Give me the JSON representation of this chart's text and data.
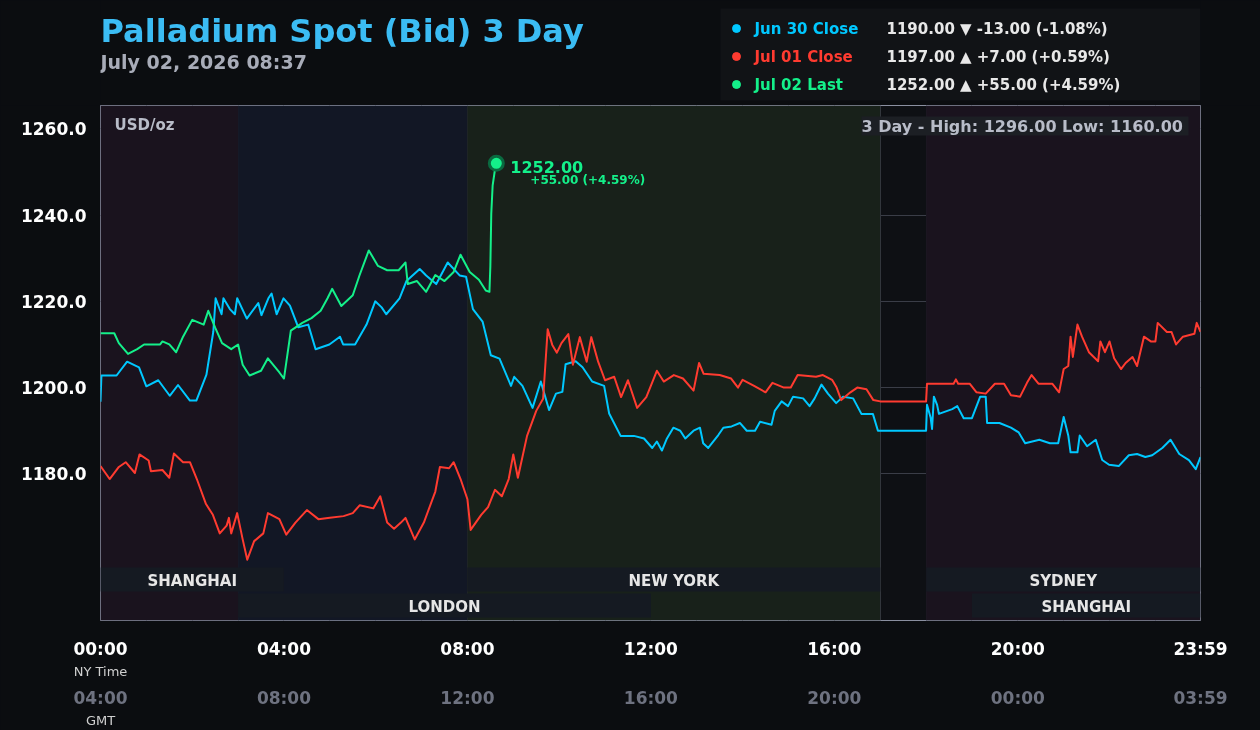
{
  "chart_data": {
    "type": "line",
    "title": "Palladium Spot (Bid) 3 Day",
    "subtitle": "July 02, 2026 08:37",
    "ylabel": "USD/oz",
    "xlabel": "NY Time",
    "x2label": "GMT",
    "xlim": [
      0,
      23.983
    ],
    "ylim": [
      1146,
      1265.4
    ],
    "xticks": [
      {
        "value": 0,
        "label": "00:00"
      },
      {
        "value": 4,
        "label": "04:00"
      },
      {
        "value": 8,
        "label": "08:00"
      },
      {
        "value": 12,
        "label": "12:00"
      },
      {
        "value": 16,
        "label": "16:00"
      },
      {
        "value": 20,
        "label": "20:00"
      },
      {
        "value": 23.983,
        "label": "23:59"
      }
    ],
    "x2lim": [
      "2026-07-02T04:00",
      "2026-07-03T03:59"
    ],
    "x2ticks": [
      {
        "value": "2026-07-02T04:00",
        "label": "04:00"
      },
      {
        "value": "2026-07-02T08:00",
        "label": "08:00"
      },
      {
        "value": "2026-07-02T12:00",
        "label": "12:00"
      },
      {
        "value": "2026-07-02T16:00",
        "label": "16:00"
      },
      {
        "value": "2026-07-02T20:00",
        "label": "20:00"
      },
      {
        "value": "2026-07-03T00:00",
        "label": "00:00"
      },
      {
        "value": "2026-07-03T03:59",
        "label": "03:59"
      }
    ],
    "yticks": [
      {
        "value": 1180,
        "label": "1180.0"
      },
      {
        "value": 1200,
        "label": "1200.0"
      },
      {
        "value": 1220,
        "label": "1220.0"
      },
      {
        "value": 1240,
        "label": "1240.0"
      },
      {
        "value": 1260,
        "label": "1260.0"
      }
    ],
    "grid": true,
    "legend": "top right",
    "line_style": "solid",
    "series": [
      {
        "name": "Jun 30 Close",
        "color": "#00c8ff",
        "x": [
          0,
          0.02,
          0.35,
          0.58,
          0.84,
          1.0,
          1.26,
          1.51,
          1.69,
          1.95,
          2.09,
          2.31,
          2.46,
          2.51,
          2.64,
          2.68,
          2.82,
          2.93,
          2.98,
          3.19,
          3.44,
          3.51,
          3.66,
          3.73,
          3.84,
          3.99,
          4.13,
          4.31,
          4.53,
          4.69,
          4.99,
          5.22,
          5.29,
          5.55,
          5.8,
          5.99,
          6.13,
          6.23,
          6.52,
          6.67,
          6.96,
          7.1,
          7.32,
          7.57,
          7.83,
          7.97,
          8.12,
          8.33,
          8.51,
          8.7,
          8.95,
          9.02,
          9.2,
          9.42,
          9.6,
          9.78,
          9.93,
          10.07,
          10.14,
          10.36,
          10.51,
          10.72,
          10.98,
          11.09,
          11.34,
          11.63,
          11.85,
          12.03,
          12.13,
          12.24,
          12.35,
          12.49,
          12.64,
          12.75,
          12.93,
          13.07,
          13.14,
          13.25,
          13.47,
          13.58,
          13.76,
          13.94,
          14.09,
          14.27,
          14.38,
          14.63,
          14.7,
          14.85,
          14.99,
          15.1,
          15.32,
          15.46,
          15.57,
          15.72,
          15.86,
          16.04,
          16.19,
          16.41,
          16.59,
          16.84,
          16.95,
          18.0,
          18.02,
          18.1,
          18.13,
          18.17,
          18.24,
          18.28,
          18.57,
          18.68,
          18.82,
          19.0,
          19.18,
          19.3,
          19.33,
          19.6,
          19.85,
          20.02,
          20.16,
          20.47,
          20.7,
          20.88,
          21.0,
          21.1,
          21.15,
          21.3,
          21.35,
          21.51,
          21.7,
          21.84,
          21.99,
          22.2,
          22.42,
          22.6,
          22.78,
          22.93,
          23.15,
          23.33,
          23.52,
          23.73,
          23.88,
          23.983
        ],
        "values": [
          1196.7,
          1202.8,
          1202.8,
          1206,
          1204.7,
          1200.3,
          1201.7,
          1198.1,
          1200.6,
          1197,
          1197,
          1203,
          1213,
          1220.7,
          1217,
          1220.7,
          1218.2,
          1217,
          1220.7,
          1216,
          1219.6,
          1216.8,
          1220.7,
          1221.8,
          1217,
          1220.7,
          1219,
          1214,
          1214.6,
          1208.9,
          1210,
          1211.8,
          1210,
          1210,
          1214.6,
          1220,
          1218.6,
          1217,
          1220.7,
          1224.7,
          1227.5,
          1226,
          1224,
          1229,
          1226,
          1225.7,
          1218.2,
          1215.3,
          1207.5,
          1206.7,
          1200.4,
          1202.5,
          1200.4,
          1195.3,
          1201.4,
          1194.8,
          1198.6,
          1199,
          1205.4,
          1206.1,
          1204.7,
          1201.4,
          1200.4,
          1194,
          1188.8,
          1188.8,
          1188.2,
          1186,
          1187.5,
          1185.4,
          1188.2,
          1190.7,
          1190,
          1188.2,
          1190,
          1190.7,
          1187.1,
          1186,
          1189,
          1190.7,
          1191,
          1191.8,
          1190,
          1190,
          1192.1,
          1191.4,
          1194.6,
          1196.8,
          1195.7,
          1197.9,
          1197.5,
          1195.7,
          1197.5,
          1200.7,
          1198.6,
          1196.4,
          1197.9,
          1197.5,
          1193.9,
          1193.9,
          1190,
          1190,
          1196,
          1193,
          1190.4,
          1197.9,
          1196,
          1193.9,
          1195,
          1195.7,
          1192.9,
          1192.9,
          1197.9,
          1197.9,
          1191.8,
          1191.8,
          1190.7,
          1189.6,
          1187.1,
          1187.9,
          1187.1,
          1187.1,
          1193.2,
          1188.9,
          1185,
          1185,
          1188.9,
          1186.4,
          1187.9,
          1183.2,
          1182.1,
          1181.8,
          1184.3,
          1184.6,
          1183.9,
          1184.3,
          1186,
          1187.9,
          1184.6,
          1183.2,
          1181.1,
          1183.9
        ]
      },
      {
        "name": "Jul 01 Close",
        "color": "#ff3b30",
        "x": [
          0,
          0.2,
          0.4,
          0.55,
          0.75,
          0.85,
          1.05,
          1.1,
          1.35,
          1.5,
          1.6,
          1.8,
          1.95,
          2.1,
          2.3,
          2.45,
          2.6,
          2.75,
          2.8,
          2.85,
          2.98,
          3.1,
          3.2,
          3.35,
          3.55,
          3.65,
          3.9,
          4.05,
          4.25,
          4.5,
          4.75,
          5.0,
          5.3,
          5.5,
          5.65,
          5.95,
          6.1,
          6.25,
          6.4,
          6.55,
          6.65,
          6.85,
          7.05,
          7.3,
          7.4,
          7.6,
          7.7,
          7.85,
          8.0,
          8.07,
          8.3,
          8.45,
          8.6,
          8.75,
          8.9,
          9.0,
          9.1,
          9.3,
          9.5,
          9.65,
          9.75,
          9.85,
          9.95,
          10.05,
          10.2,
          10.3,
          10.45,
          10.6,
          10.7,
          10.85,
          11.0,
          11.2,
          11.35,
          11.5,
          11.7,
          11.9,
          12.13,
          12.28,
          12.5,
          12.7,
          12.93,
          13.05,
          13.15,
          13.5,
          13.75,
          13.9,
          14.0,
          14.25,
          14.5,
          14.65,
          14.9,
          15.05,
          15.2,
          15.6,
          15.75,
          15.95,
          16.05,
          16.15,
          16.35,
          16.5,
          16.7,
          16.85,
          17.0,
          18.0,
          18.02,
          18.6,
          18.65,
          18.7,
          18.95,
          19.1,
          19.3,
          19.5,
          19.7,
          19.85,
          20.05,
          20.2,
          20.3,
          20.45,
          20.75,
          20.9,
          21.0,
          21.1,
          21.15,
          21.2,
          21.3,
          21.4,
          21.55,
          21.75,
          21.8,
          21.9,
          22.0,
          22.1,
          22.25,
          22.35,
          22.5,
          22.6,
          22.75,
          22.9,
          23.0,
          23.05,
          23.25,
          23.35,
          23.45,
          23.6,
          23.85,
          23.9,
          23.983
        ],
        "values": [
          1181.8,
          1178.8,
          1181.6,
          1182.7,
          1180.2,
          1184.5,
          1183.1,
          1180.6,
          1180.9,
          1179.1,
          1184.7,
          1182.7,
          1182.7,
          1178.8,
          1173,
          1170.5,
          1166.2,
          1168,
          1169.8,
          1166.2,
          1170.9,
          1164.8,
          1160.1,
          1164.4,
          1166.2,
          1170.9,
          1169.5,
          1165.9,
          1168.7,
          1171.6,
          1169.5,
          1169.8,
          1170.2,
          1170.9,
          1172.7,
          1172,
          1174.8,
          1168.7,
          1167.3,
          1168.7,
          1169.8,
          1164.8,
          1168.7,
          1175.9,
          1181.6,
          1181.3,
          1182.7,
          1178.8,
          1174.1,
          1167,
          1170.5,
          1172.3,
          1176.3,
          1174.8,
          1178.8,
          1184.5,
          1179.1,
          1188.8,
          1194.6,
          1197.4,
          1213.5,
          1209.9,
          1208.1,
          1210.3,
          1212.4,
          1205.3,
          1211.7,
          1206,
          1211.7,
          1206,
          1201.7,
          1202.5,
          1197.8,
          1201.7,
          1195.3,
          1197.8,
          1203.9,
          1201.4,
          1202.9,
          1202.1,
          1199.3,
          1205.7,
          1203.2,
          1202.9,
          1202.1,
          1200,
          1201.8,
          1200.4,
          1198.9,
          1201.1,
          1200,
          1200,
          1202.9,
          1202.5,
          1202.9,
          1201.8,
          1200,
          1197.1,
          1198.9,
          1200,
          1199.6,
          1197.1,
          1196.8,
          1196.8,
          1200.9,
          1200.9,
          1201.9,
          1200.9,
          1200.9,
          1198.9,
          1198.6,
          1200.9,
          1200.9,
          1198.2,
          1197.9,
          1201.1,
          1202.9,
          1200.9,
          1200.9,
          1198.9,
          1204.3,
          1205,
          1211.8,
          1207.1,
          1214.6,
          1211.8,
          1208.2,
          1206.1,
          1210.7,
          1208.2,
          1210.7,
          1206.8,
          1204.3,
          1205.7,
          1207.1,
          1205,
          1211.8,
          1210.7,
          1210.7,
          1215,
          1212.9,
          1212.9,
          1210,
          1211.8,
          1212.5,
          1215,
          1212.9
        ]
      },
      {
        "name": "Jul 02 Last",
        "color": "#14f08a",
        "x": [
          0,
          0.3,
          0.4,
          0.6,
          0.8,
          0.95,
          1.3,
          1.35,
          1.5,
          1.65,
          1.8,
          2.0,
          2.25,
          2.35,
          2.5,
          2.65,
          2.85,
          3.0,
          3.1,
          3.25,
          3.5,
          3.65,
          3.9,
          4.0,
          4.15,
          4.4,
          4.6,
          4.8,
          4.95,
          5.05,
          5.25,
          5.5,
          5.65,
          5.85,
          6.05,
          6.25,
          6.5,
          6.65,
          6.7,
          6.9,
          7.1,
          7.3,
          7.5,
          7.7,
          7.85,
          8.05,
          8.25,
          8.4,
          8.48,
          8.5,
          8.52,
          8.55,
          8.6,
          8.63
        ],
        "values": [
          1212.6,
          1212.6,
          1210.3,
          1207.8,
          1208.9,
          1210,
          1210,
          1210.7,
          1210,
          1208.2,
          1211.8,
          1215.7,
          1214.6,
          1217.8,
          1213.9,
          1210.3,
          1208.9,
          1210,
          1205.3,
          1202.8,
          1203.9,
          1206.8,
          1203.5,
          1202.1,
          1213.2,
          1215,
          1216.1,
          1217.8,
          1220.7,
          1222.9,
          1218.9,
          1221.4,
          1226.1,
          1231.8,
          1228.2,
          1227.2,
          1227.2,
          1229,
          1224,
          1224.7,
          1222.2,
          1226.1,
          1224.7,
          1226.8,
          1230.8,
          1226.8,
          1225,
          1222.5,
          1222.2,
          1228.2,
          1240.4,
          1246.9,
          1250.5,
          1252
        ]
      }
    ],
    "annotations": [
      "1190.00  ▼   -13.00      (-1.08%)",
      "1197.00  ▲    +7.00      (+0.59%)",
      "1252.00  ▲  +55.00      (+4.59%)",
      "3 Day - High: 1296.00  Low: 1160.00",
      "+55.00 (+4.59%)",
      {
        "text": "1252.00",
        "x": 8.63,
        "y": 1252
      }
    ],
    "bands": [
      {
        "axis": "x",
        "from": 0,
        "to": 3,
        "color": "#1a131e"
      },
      {
        "axis": "x",
        "from": 3,
        "to": 8,
        "color": "#121725"
      },
      {
        "axis": "x",
        "from": 8,
        "to": 17,
        "color": "#18211a"
      },
      {
        "axis": "x",
        "from": 18,
        "to": 23.983,
        "color": "#1a131e"
      },
      {
        "axis": "x",
        "from": 0,
        "to": 4,
        "label": "SHANGHAI",
        "color": "#151a22"
      },
      {
        "axis": "x",
        "from": 3,
        "to": 12,
        "label": "LONDON",
        "color": "#151a22"
      },
      {
        "axis": "x",
        "from": 8,
        "to": 17,
        "label": "NEW YORK",
        "color": "#151a22"
      },
      {
        "axis": "x",
        "from": 18,
        "to": 23.983,
        "label": "SYDNEY",
        "color": "#151a22"
      },
      {
        "axis": "x",
        "from": 19,
        "to": 23.983,
        "label": "SHANGHAI",
        "color": "#151a22"
      }
    ]
  }
}
